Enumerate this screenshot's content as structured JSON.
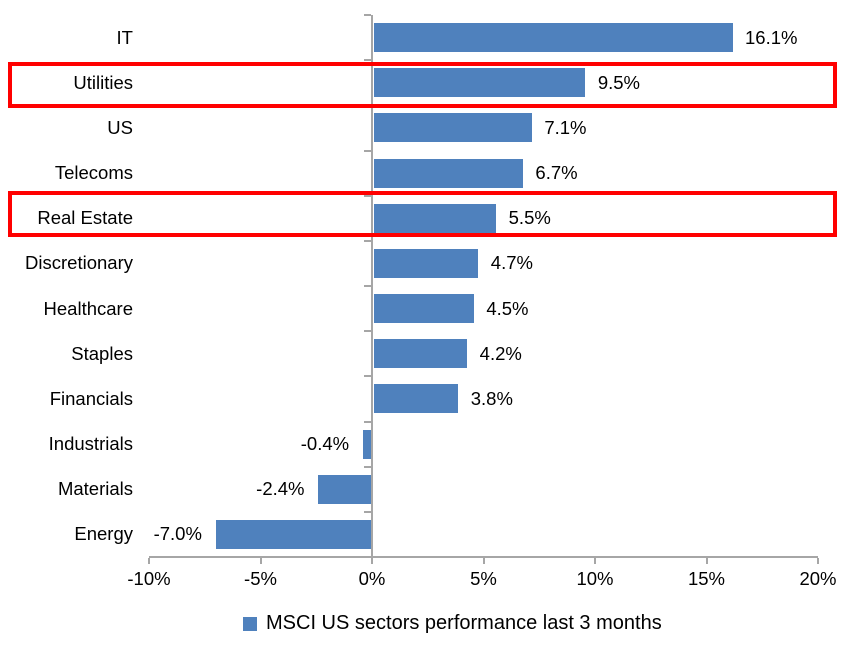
{
  "chart_data": {
    "type": "bar",
    "orientation": "horizontal",
    "title": "",
    "categories": [
      "IT",
      "Utilities",
      "US",
      "Telecoms",
      "Real Estate",
      "Discretionary",
      "Healthcare",
      "Staples",
      "Financials",
      "Industrials",
      "Materials",
      "Energy"
    ],
    "values": [
      16.1,
      9.5,
      7.1,
      6.7,
      5.5,
      4.7,
      4.5,
      4.2,
      3.8,
      -0.4,
      -2.4,
      -7.0
    ],
    "data_labels": [
      "16.1%",
      "9.5%",
      "7.1%",
      "6.7%",
      "5.5%",
      "4.7%",
      "4.5%",
      "4.2%",
      "3.8%",
      "-0.4%",
      "-2.4%",
      "-7.0%"
    ],
    "x_ticks": [
      "-10%",
      "-5%",
      "0%",
      "5%",
      "10%",
      "15%",
      "20%"
    ],
    "x_tick_values": [
      -10,
      -5,
      0,
      5,
      10,
      15,
      20
    ],
    "xlim": [
      -10,
      20
    ],
    "grid": false,
    "legend": "MSCI US sectors performance last 3 months",
    "legend_position": "bottom",
    "bar_color": "#4F81BD",
    "axis_color": "#A6A6A6",
    "highlight_color": "#FF0000",
    "highlighted_categories": [
      "Utilities",
      "Real Estate"
    ]
  }
}
